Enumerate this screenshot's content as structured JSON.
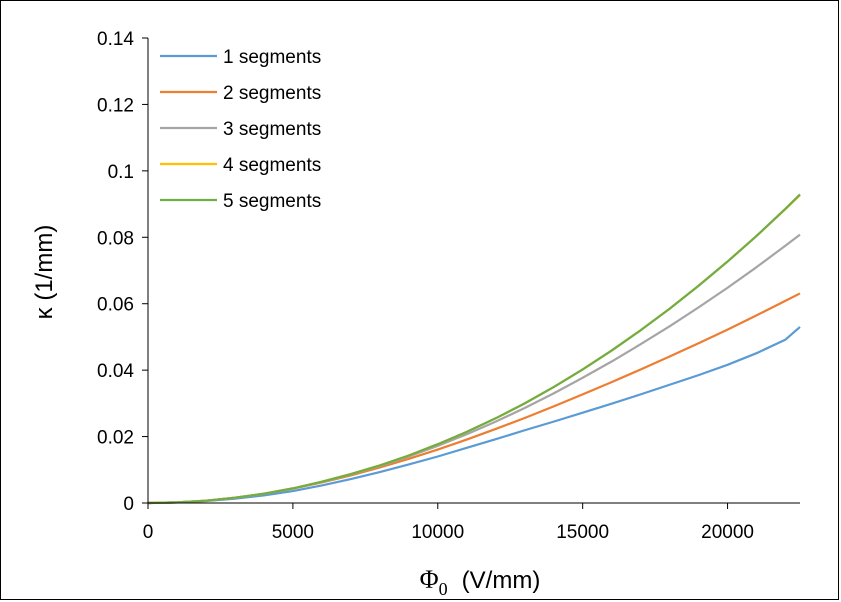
{
  "chart_data": {
    "type": "line",
    "xlabel_symbol": "Φ",
    "xlabel_subscript": "0",
    "xlabel_unit": "(V/mm)",
    "ylabel": "κ (1/mm)",
    "xlim": [
      0,
      22500
    ],
    "ylim": [
      0,
      0.14
    ],
    "x_ticks": [
      0,
      5000,
      10000,
      15000,
      20000
    ],
    "x_tick_labels": [
      "0",
      "5000",
      "10000",
      "15000",
      "20000"
    ],
    "y_ticks": [
      0,
      0.02,
      0.04,
      0.06,
      0.08,
      0.1,
      0.12,
      0.14
    ],
    "y_tick_labels": [
      "0",
      "0.02",
      "0.04",
      "0.06",
      "0.08",
      "0.1",
      "0.12",
      "0.14"
    ],
    "grid": false,
    "legend_position": "top-left",
    "x": [
      0,
      1000,
      2000,
      3000,
      4000,
      5000,
      6000,
      7000,
      8000,
      9000,
      10000,
      11000,
      12000,
      13000,
      14000,
      15000,
      16000,
      17000,
      18000,
      19000,
      20000,
      21000,
      22000,
      22500
    ],
    "series": [
      {
        "name": "1 segments",
        "color": "#5B9BD5",
        "values": [
          0,
          0.0002,
          0.0006,
          0.0013,
          0.0023,
          0.0036,
          0.0053,
          0.0072,
          0.0093,
          0.0116,
          0.014,
          0.0166,
          0.0192,
          0.0219,
          0.0245,
          0.0272,
          0.0299,
          0.0327,
          0.0356,
          0.0385,
          0.0416,
          0.0451,
          0.0492,
          0.053
        ]
      },
      {
        "name": "2 segments",
        "color": "#ED7D31",
        "values": [
          0,
          0.0002,
          0.0007,
          0.0016,
          0.0028,
          0.0043,
          0.0062,
          0.0083,
          0.0107,
          0.0133,
          0.0161,
          0.0191,
          0.0223,
          0.0256,
          0.0291,
          0.0327,
          0.0364,
          0.0402,
          0.0441,
          0.0481,
          0.0522,
          0.0565,
          0.0609,
          0.0631
        ]
      },
      {
        "name": "3 segments",
        "color": "#A5A5A5",
        "values": [
          0,
          0.0002,
          0.0007,
          0.0016,
          0.0028,
          0.0044,
          0.0063,
          0.0086,
          0.0111,
          0.014,
          0.0172,
          0.0207,
          0.0245,
          0.0286,
          0.033,
          0.0377,
          0.0426,
          0.0478,
          0.0532,
          0.0589,
          0.0648,
          0.071,
          0.0775,
          0.0808
        ]
      },
      {
        "name": "4 segments",
        "color": "#FFC000",
        "values": [
          0,
          0.0002,
          0.0007,
          0.0016,
          0.0028,
          0.0044,
          0.0064,
          0.0087,
          0.0113,
          0.0143,
          0.0177,
          0.0214,
          0.0255,
          0.03,
          0.0349,
          0.0402,
          0.0459,
          0.052,
          0.0585,
          0.0654,
          0.0727,
          0.0804,
          0.0885,
          0.0927
        ]
      },
      {
        "name": "5 segments",
        "color": "#70AD47",
        "values": [
          0,
          0.0002,
          0.0007,
          0.0016,
          0.0028,
          0.0044,
          0.0064,
          0.0087,
          0.0113,
          0.0143,
          0.0177,
          0.0214,
          0.0255,
          0.03,
          0.0349,
          0.0402,
          0.0459,
          0.052,
          0.0585,
          0.0654,
          0.0727,
          0.0804,
          0.0886,
          0.0929
        ]
      }
    ]
  }
}
